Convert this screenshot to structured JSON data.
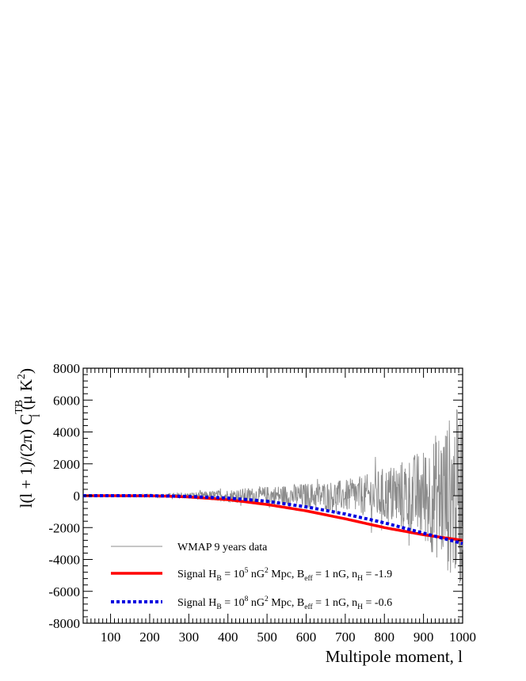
{
  "chart_data": {
    "type": "line",
    "xlabel": "Multipole moment, l",
    "ylabel": {
      "pre": "l(l + 1)/(2π) C",
      "sup": "TB",
      "sub": "l",
      "post": " (μ K",
      "post_sup": "2",
      "close": ")"
    },
    "xlim": [
      30,
      1000
    ],
    "ylim": [
      -8000,
      8000
    ],
    "x_ticks": [
      100,
      200,
      300,
      400,
      500,
      600,
      700,
      800,
      900,
      1000
    ],
    "y_ticks": [
      -8000,
      -6000,
      -4000,
      -2000,
      0,
      2000,
      4000,
      6000,
      8000
    ],
    "legend_position": "bottom-left",
    "grid": false,
    "series": [
      {
        "name": "WMAP 9 years data",
        "style": "noisy-data",
        "color": "#8c8c8c",
        "envelope_x": [
          30,
          200,
          300,
          400,
          500,
          600,
          700,
          750,
          800,
          850,
          900,
          950,
          1000
        ],
        "envelope_half_width": [
          0,
          100,
          200,
          400,
          600,
          800,
          1000,
          1300,
          1800,
          2300,
          3000,
          4500,
          6000
        ]
      },
      {
        "name_parts": [
          "Signal H",
          "B",
          " = 10",
          "5",
          " nG",
          "2",
          " Mpc, B",
          "eff",
          " = 1 nG, n",
          "H",
          " = -1.9"
        ],
        "style": "solid",
        "color": "#ff0000",
        "x": [
          30,
          100,
          200,
          250,
          300,
          400,
          500,
          600,
          700,
          800,
          900,
          1000
        ],
        "y": [
          0,
          0,
          -10,
          -30,
          -80,
          -250,
          -550,
          -950,
          -1450,
          -2000,
          -2450,
          -2800
        ]
      },
      {
        "name_parts": [
          "Signal H",
          "B",
          " = 10",
          "8",
          " nG",
          "2",
          " Mpc, B",
          "eff",
          " = 1 nG, n",
          "H",
          " = -0.6"
        ],
        "style": "dotted",
        "color": "#0000e0",
        "x": [
          30,
          100,
          200,
          250,
          300,
          400,
          500,
          600,
          700,
          800,
          900,
          1000
        ],
        "y": [
          0,
          0,
          0,
          -20,
          -50,
          -150,
          -350,
          -700,
          -1150,
          -1700,
          -2350,
          -3000
        ]
      }
    ]
  }
}
